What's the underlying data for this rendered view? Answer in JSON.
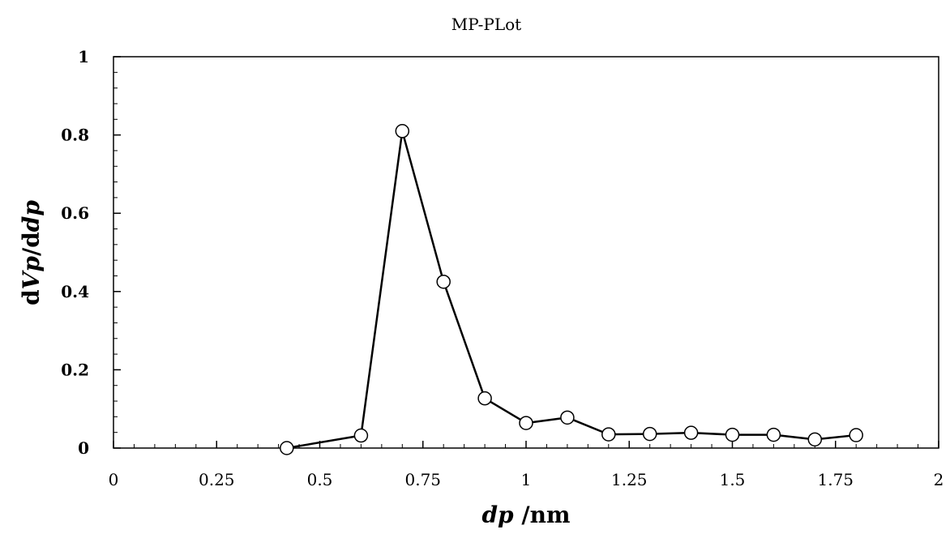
{
  "chart_data": {
    "type": "line",
    "title": "MP-PLot",
    "xlabel": {
      "italic": "dp",
      "rest": " /nm"
    },
    "ylabel": {
      "p1": "d",
      "p2": "Vp",
      "p3": "/d",
      "p4": "dp"
    },
    "xlim": [
      0,
      2
    ],
    "ylim": [
      0,
      1
    ],
    "x_ticks": [
      0,
      0.25,
      0.5,
      0.75,
      1,
      1.25,
      1.5,
      1.75,
      2
    ],
    "x_tick_labels": [
      "0",
      "0.25",
      "0.5",
      "0.75",
      "1",
      "1.25",
      "1.5",
      "1.75",
      "2"
    ],
    "y_ticks": [
      0,
      0.2,
      0.4,
      0.6,
      0.8,
      1
    ],
    "y_tick_labels": [
      "0",
      "0.2",
      "0.4",
      "0.6",
      "0.8",
      "1"
    ],
    "x_minor_step": 0.05,
    "y_minor_step": 0.04,
    "grid": false,
    "series": [
      {
        "marker": "open-circle",
        "color": "#000000",
        "points": [
          {
            "x": 0.42,
            "y": 0.0
          },
          {
            "x": 0.6,
            "y": 0.032
          },
          {
            "x": 0.7,
            "y": 0.81
          },
          {
            "x": 0.8,
            "y": 0.425
          },
          {
            "x": 0.9,
            "y": 0.127
          },
          {
            "x": 1.0,
            "y": 0.064
          },
          {
            "x": 1.1,
            "y": 0.078
          },
          {
            "x": 1.2,
            "y": 0.035
          },
          {
            "x": 1.3,
            "y": 0.036
          },
          {
            "x": 1.4,
            "y": 0.039
          },
          {
            "x": 1.5,
            "y": 0.034
          },
          {
            "x": 1.6,
            "y": 0.034
          },
          {
            "x": 1.7,
            "y": 0.022
          },
          {
            "x": 1.8,
            "y": 0.033
          }
        ]
      }
    ]
  }
}
